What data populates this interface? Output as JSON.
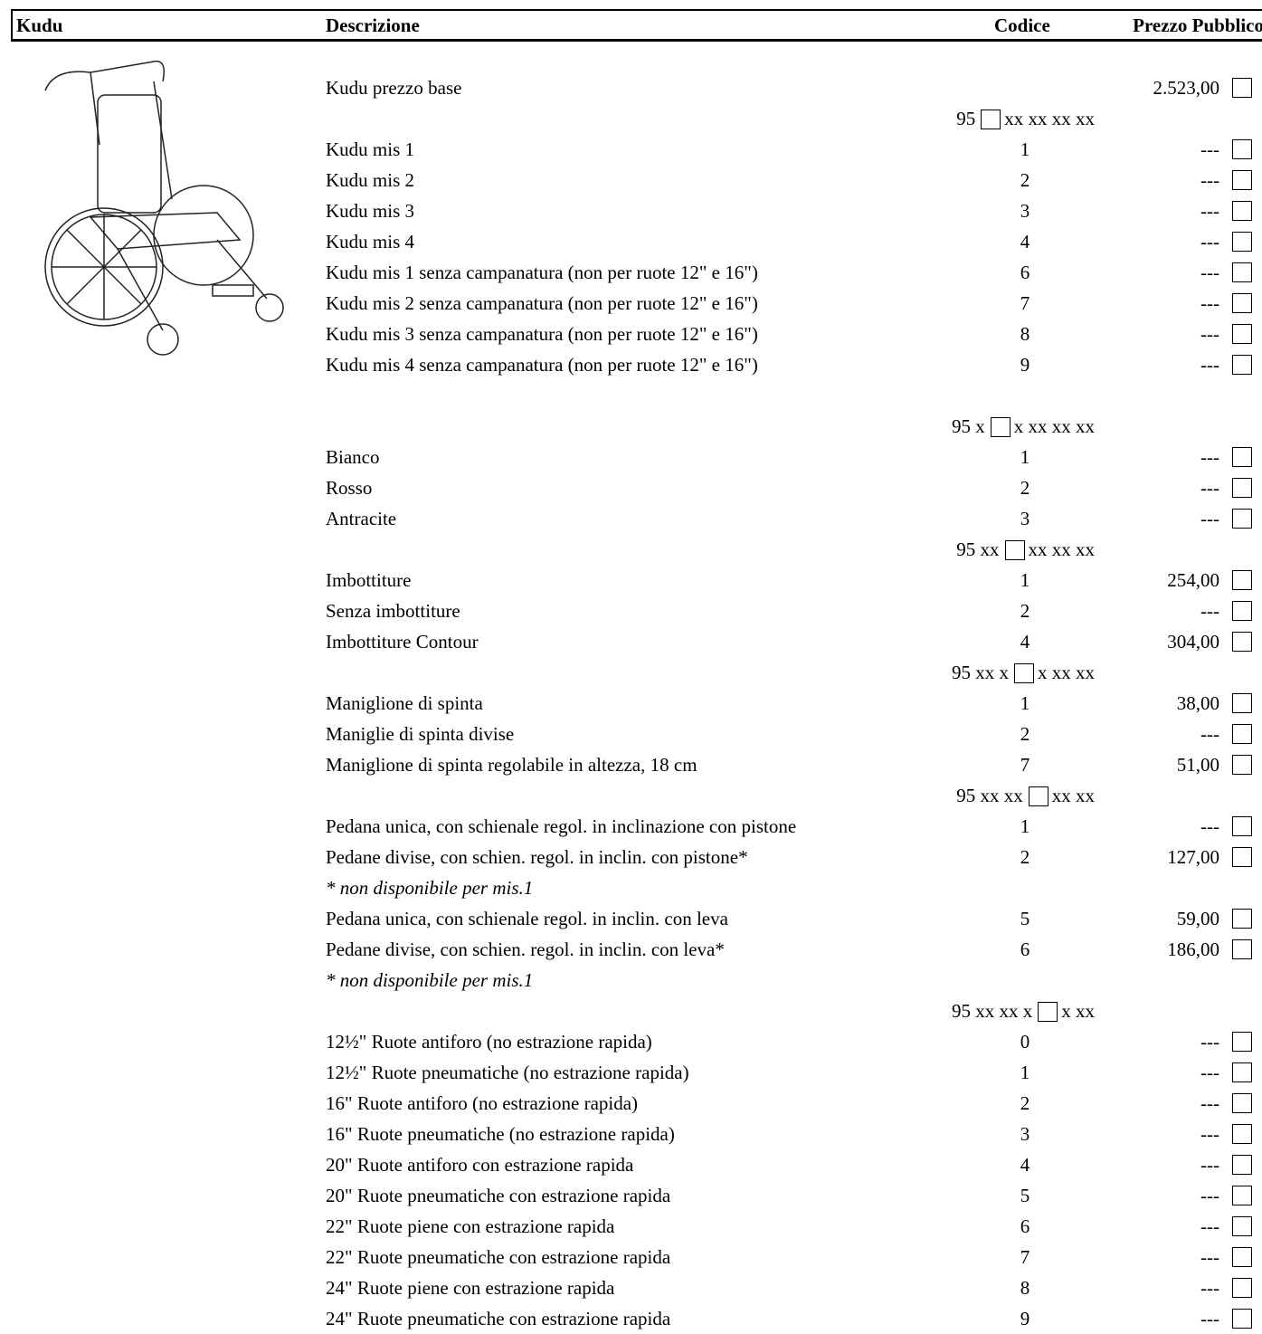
{
  "header": {
    "model": "Kudu",
    "description": "Descrizione",
    "code": "Codice",
    "price": "Prezzo Pubblico"
  },
  "base": {
    "label": "Kudu prezzo base",
    "price": "2.523,00"
  },
  "groups": [
    {
      "prefix": "95",
      "suffix": "xx xx xx xx",
      "items": [
        {
          "label": "Kudu mis 1",
          "code": "1",
          "price": "---"
        },
        {
          "label": "Kudu mis 2",
          "code": "2",
          "price": "---"
        },
        {
          "label": "Kudu mis 3",
          "code": "3",
          "price": "---"
        },
        {
          "label": "Kudu mis 4",
          "code": "4",
          "price": "---"
        },
        {
          "label": "Kudu mis 1 senza campanatura (non per ruote 12\" e 16\")",
          "code": "6",
          "price": "---"
        },
        {
          "label": "Kudu mis 2 senza campanatura (non per ruote 12\" e 16\")",
          "code": "7",
          "price": "---"
        },
        {
          "label": "Kudu mis 3 senza campanatura (non per ruote 12\" e 16\")",
          "code": "8",
          "price": "---"
        },
        {
          "label": "Kudu mis 4 senza campanatura (non per ruote 12\" e 16\")",
          "code": "9",
          "price": "---"
        }
      ]
    },
    {
      "prefix": "95 x",
      "suffix": "x xx xx xx",
      "items": [
        {
          "label": "Bianco",
          "code": "1",
          "price": "---"
        },
        {
          "label": "Rosso",
          "code": "2",
          "price": "---"
        },
        {
          "label": "Antracite",
          "code": "3",
          "price": "---"
        }
      ]
    },
    {
      "prefix": "95 xx",
      "suffix": "xx xx xx",
      "items": [
        {
          "label": "Imbottiture",
          "code": "1",
          "price": "254,00"
        },
        {
          "label": "Senza imbottiture",
          "code": "2",
          "price": "---"
        },
        {
          "label": "Imbottiture Contour",
          "code": "4",
          "price": "304,00"
        }
      ]
    },
    {
      "prefix": "95 xx x",
      "suffix": "x xx xx",
      "items": [
        {
          "label": "Maniglione di spinta",
          "code": "1",
          "price": "38,00"
        },
        {
          "label": "Maniglie di spinta divise",
          "code": "2",
          "price": "---"
        },
        {
          "label": "Maniglione di spinta regolabile in altezza, 18 cm",
          "code": "7",
          "price": "51,00"
        }
      ]
    },
    {
      "prefix": "95 xx xx",
      "suffix": "xx xx",
      "items": [
        {
          "label": "Pedana unica, con schienale regol. in inclinazione con pistone",
          "code": "1",
          "price": "---"
        },
        {
          "label": "Pedane divise, con schien. regol. in inclin. con pistone*",
          "code": "2",
          "price": "127,00"
        },
        {
          "note": "* non disponibile per mis.1"
        },
        {
          "label": "Pedana unica, con schienale regol. in inclin. con leva",
          "code": "5",
          "price": "59,00"
        },
        {
          "label": "Pedane divise, con schien. regol. in inclin. con leva*",
          "code": "6",
          "price": "186,00"
        },
        {
          "note": "* non disponibile per mis.1"
        }
      ]
    },
    {
      "prefix": "95 xx xx x",
      "suffix": "x xx",
      "items": [
        {
          "label": "12½\" Ruote antiforo (no estrazione rapida)",
          "code": "0",
          "price": "---"
        },
        {
          "label": "12½\" Ruote pneumatiche (no estrazione rapida)",
          "code": "1",
          "price": "---"
        },
        {
          "label": "16\" Ruote antiforo (no estrazione rapida)",
          "code": "2",
          "price": "---"
        },
        {
          "label": "16\" Ruote pneumatiche (no estrazione rapida)",
          "code": "3",
          "price": "---"
        },
        {
          "label": "20\" Ruote antiforo con estrazione rapida",
          "code": "4",
          "price": "---"
        },
        {
          "label": "20\" Ruote pneumatiche con estrazione rapida",
          "code": "5",
          "price": "---"
        },
        {
          "label": "22\" Ruote piene con estrazione rapida",
          "code": "6",
          "price": "---"
        },
        {
          "label": "22\" Ruote pneumatiche con estrazione rapida",
          "code": "7",
          "price": "---"
        },
        {
          "label": "24\" Ruote piene con estrazione rapida",
          "code": "8",
          "price": "---"
        },
        {
          "label": "24\" Ruote pneumatiche con estrazione rapida",
          "code": "9",
          "price": "---"
        }
      ]
    }
  ]
}
